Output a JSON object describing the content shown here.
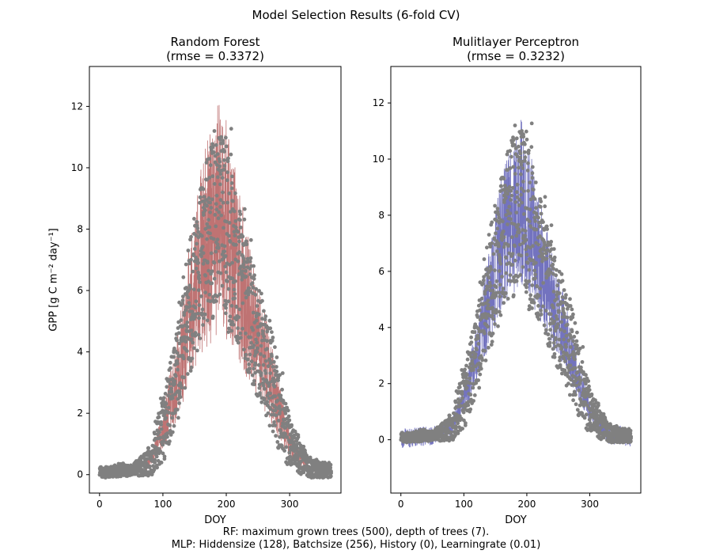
{
  "figure": {
    "suptitle": "Model Selection Results (6-fold CV)",
    "footnote_line1": "RF: maximum grown trees (500), depth of trees (7).",
    "footnote_line2": "MLP: Hiddensize (128), Batchsize (256), History (0), Learningrate (0.01)"
  },
  "panels": [
    {
      "title_line1": "Random Forest",
      "title_line2": "(rmse = 0.3372)",
      "xlabel": "DOY",
      "ylabel": "GPP [g C m⁻² day⁻¹]"
    },
    {
      "title_line1": "Mulitlayer Perceptron",
      "title_line2": "(rmse = 0.3232)",
      "xlabel": "DOY",
      "ylabel": ""
    }
  ],
  "chart_data": [
    {
      "type": "scatter",
      "title": "Random Forest (rmse = 0.3372)",
      "xlabel": "DOY",
      "ylabel": "GPP [g C m⁻² day⁻¹]",
      "xlim": [
        -16,
        381
      ],
      "ylim": [
        -0.6,
        13.3
      ],
      "xticks": [
        0,
        100,
        200,
        300
      ],
      "yticks": [
        0,
        2,
        4,
        6,
        8,
        10,
        12
      ],
      "grid": false,
      "observed_color": "#808080",
      "prediction_color": "#8b0000",
      "observed_envelope": {
        "doy": [
          0,
          50,
          80,
          100,
          120,
          140,
          160,
          180,
          190,
          200,
          220,
          240,
          260,
          280,
          300,
          330,
          365
        ],
        "gpp_mean": [
          0.05,
          0.15,
          0.4,
          1.5,
          3.0,
          5.0,
          7.0,
          8.0,
          8.5,
          8.0,
          6.5,
          5.0,
          3.8,
          2.3,
          1.0,
          0.2,
          0.1
        ],
        "gpp_max": [
          0.3,
          0.4,
          1.0,
          3.0,
          5.0,
          7.5,
          10.5,
          12.4,
          12.0,
          12.6,
          9.5,
          8.0,
          6.0,
          4.5,
          2.0,
          0.7,
          0.4
        ]
      },
      "series": [
        {
          "name": "",
          "role": "observed points"
        },
        {
          "name": "",
          "role": "predicted line"
        }
      ]
    },
    {
      "type": "scatter",
      "title": "Mulitlayer Perceptron (rmse = 0.3232)",
      "xlabel": "DOY",
      "ylabel": "",
      "xlim": [
        -16,
        381
      ],
      "ylim": [
        -1.9,
        13.3
      ],
      "xticks": [
        0,
        100,
        200,
        300
      ],
      "yticks": [
        0,
        2,
        4,
        6,
        8,
        10,
        12
      ],
      "grid": false,
      "observed_color": "#808080",
      "prediction_color": "#00008b",
      "observed_envelope": {
        "doy": [
          0,
          50,
          80,
          100,
          120,
          140,
          160,
          180,
          190,
          200,
          220,
          240,
          260,
          280,
          300,
          330,
          365
        ],
        "gpp_mean": [
          0.05,
          0.15,
          0.4,
          1.5,
          3.0,
          5.0,
          7.0,
          8.0,
          8.5,
          8.0,
          6.5,
          5.0,
          3.8,
          2.3,
          1.0,
          0.2,
          0.1
        ],
        "gpp_max": [
          0.3,
          0.4,
          1.0,
          3.0,
          5.0,
          7.5,
          10.5,
          12.4,
          12.0,
          12.6,
          9.5,
          8.0,
          6.0,
          4.5,
          2.0,
          0.7,
          0.4
        ]
      },
      "series": [
        {
          "name": "",
          "role": "observed points"
        },
        {
          "name": "",
          "role": "predicted line"
        }
      ]
    }
  ]
}
